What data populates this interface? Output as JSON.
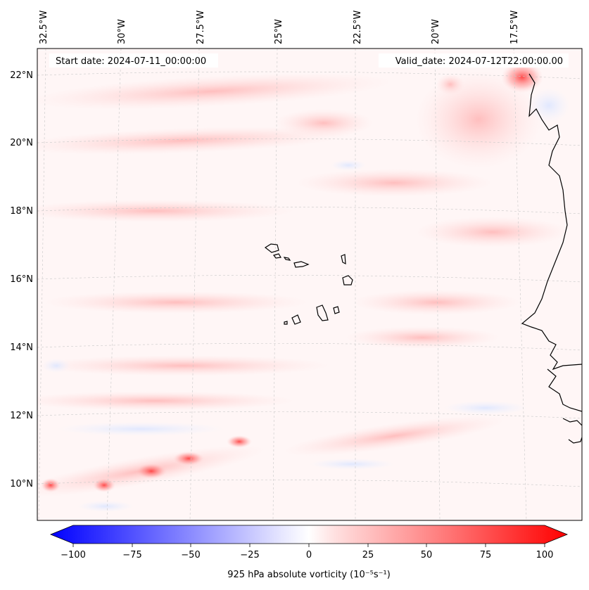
{
  "map": {
    "start_date": "Start date: 2024-07-11_00:00:00",
    "valid_date": "Valid_date: 2024-07-12T22:00:00.00",
    "lon_ticks": [
      "32.5°W",
      "30°W",
      "27.5°W",
      "25°W",
      "22.5°W",
      "20°W",
      "17.5°W"
    ],
    "lat_ticks": [
      "22°N",
      "20°N",
      "18°N",
      "16°N",
      "14°N",
      "12°N",
      "10°N"
    ],
    "colors": {
      "positive": "#ff0000",
      "negative": "#0000ff",
      "zero": "#ffffff"
    }
  },
  "colorbar": {
    "label": "925 hPa absolute vorticity (10⁻⁵s⁻¹)",
    "ticks": [
      "−100",
      "−75",
      "−50",
      "−25",
      "0",
      "25",
      "50",
      "75",
      "100"
    ],
    "min": -100,
    "max": 100
  }
}
